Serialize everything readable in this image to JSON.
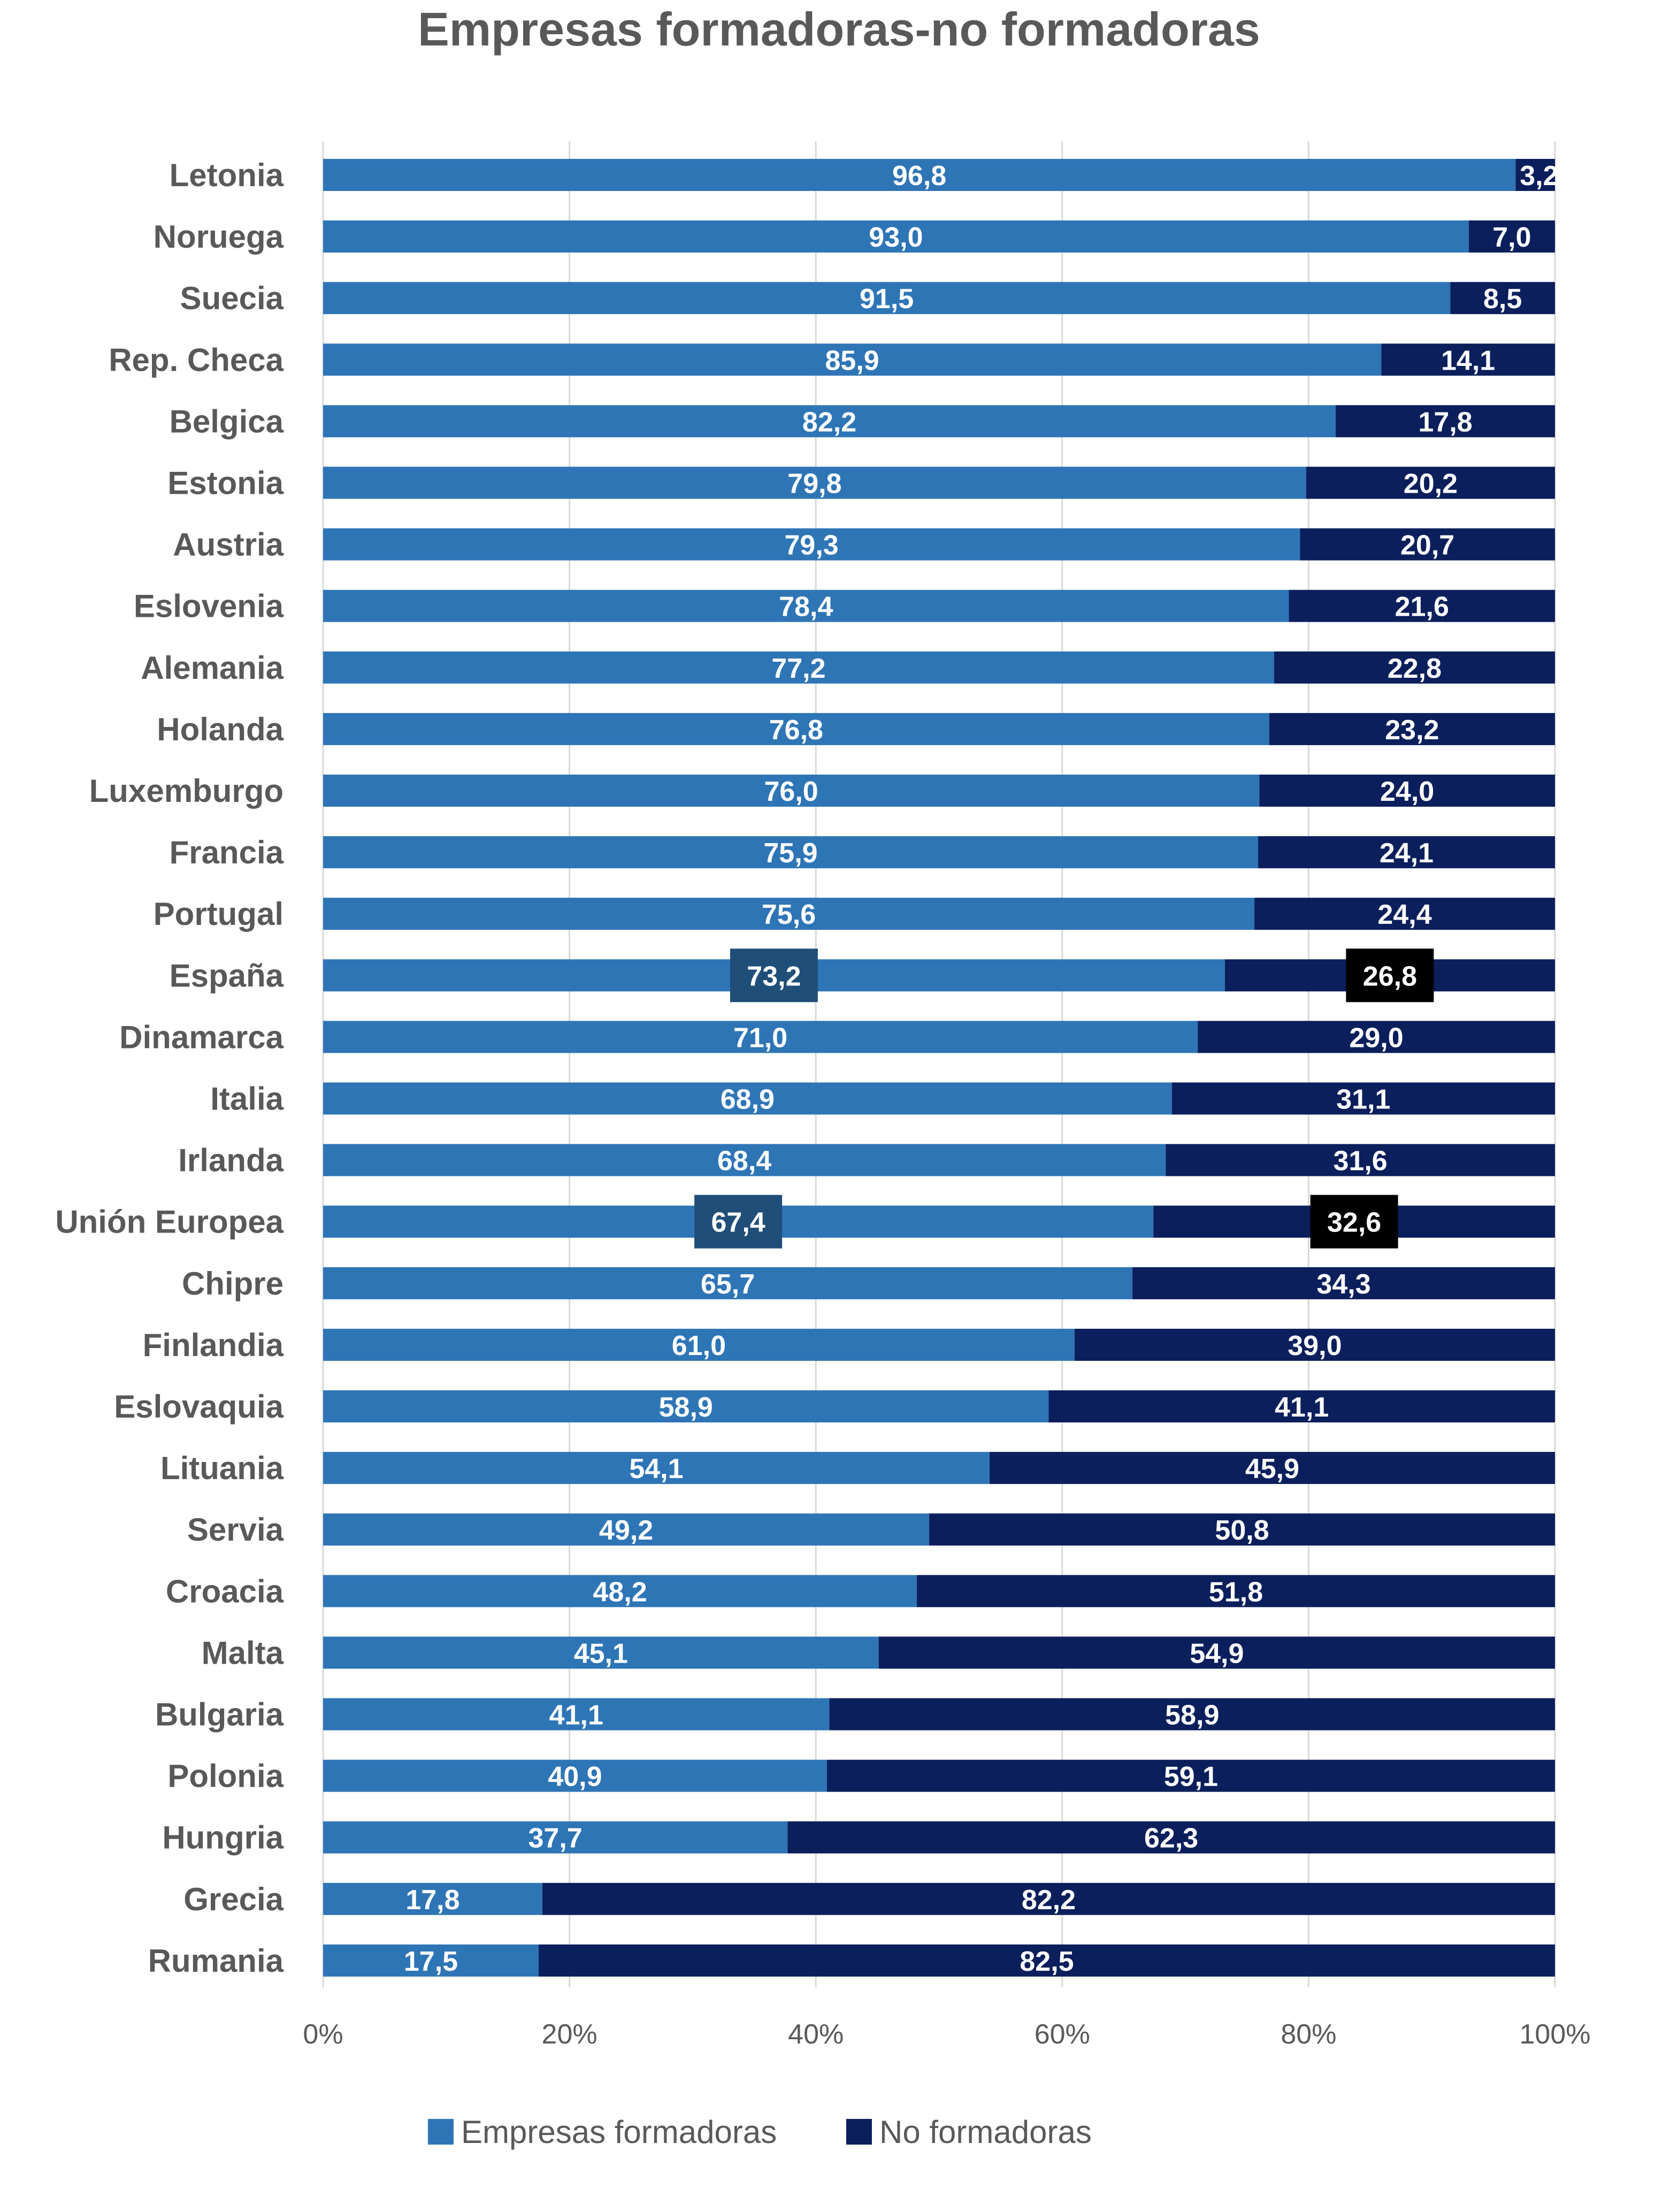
{
  "chart_data": {
    "type": "bar",
    "orientation": "horizontal",
    "stacked": "percent",
    "title": "Empresas formadoras-no formadoras",
    "categories": [
      "Letonia",
      "Noruega",
      "Suecia",
      "Rep. Checa",
      "Belgica",
      "Estonia",
      "Austria",
      "Eslovenia",
      "Alemania",
      "Holanda",
      "Luxemburgo",
      "Francia",
      "Portugal",
      "España",
      "Dinamarca",
      "Italia",
      "Irlanda",
      "Unión Europea",
      "Chipre",
      "Finlandia",
      "Eslovaquia",
      "Lituania",
      "Servia",
      "Croacia",
      "Malta",
      "Bulgaria",
      "Polonia",
      "Hungria",
      "Grecia",
      "Rumania"
    ],
    "series": [
      {
        "name": "Empresas formadoras",
        "color": "#2E75B6",
        "values": [
          96.8,
          93.0,
          91.5,
          85.9,
          82.2,
          79.8,
          79.3,
          78.4,
          77.2,
          76.8,
          76.0,
          75.9,
          75.6,
          73.2,
          71.0,
          68.9,
          68.4,
          67.4,
          65.7,
          61.0,
          58.9,
          54.1,
          49.2,
          48.2,
          45.1,
          41.1,
          40.9,
          37.7,
          17.8,
          17.5
        ],
        "labels": [
          "96,8",
          "93,0",
          "91,5",
          "85,9",
          "82,2",
          "79,8",
          "79,3",
          "78,4",
          "77,2",
          "76,8",
          "76,0",
          "75,9",
          "75,6",
          "73,2",
          "71,0",
          "68,9",
          "68,4",
          "67,4",
          "65,7",
          "61,0",
          "58,9",
          "54,1",
          "49,2",
          "48,2",
          "45,1",
          "41,1",
          "40,9",
          "37,7",
          "17,8",
          "17,5"
        ]
      },
      {
        "name": "No formadoras",
        "color": "#0B1F5C",
        "values": [
          3.2,
          7.0,
          8.5,
          14.1,
          17.8,
          20.2,
          20.7,
          21.6,
          22.8,
          23.2,
          24.0,
          24.1,
          24.4,
          26.8,
          29.0,
          31.1,
          31.6,
          32.6,
          34.3,
          39.0,
          41.1,
          45.9,
          50.8,
          51.8,
          54.9,
          58.9,
          59.1,
          62.3,
          82.2,
          82.5
        ],
        "labels": [
          "3,2",
          "7,0",
          "8,5",
          "14,1",
          "17,8",
          "20,2",
          "20,7",
          "21,6",
          "22,8",
          "23,2",
          "24,0",
          "24,1",
          "24,4",
          "26,8",
          "29,0",
          "31,1",
          "31,6",
          "32,6",
          "34,3",
          "39,0",
          "41,1",
          "45,9",
          "50,8",
          "51,8",
          "54,9",
          "58,9",
          "59,1",
          "62,3",
          "82,2",
          "82,5"
        ]
      }
    ],
    "highlighted_categories": [
      "España",
      "Unión Europea"
    ],
    "highlight_colors": {
      "formadoras": "#1F4E79",
      "no_formadoras": "#000000"
    },
    "xlim": [
      0,
      100
    ],
    "x_ticks": [
      "0%",
      "20%",
      "40%",
      "60%",
      "80%",
      "100%"
    ],
    "grid": "vertical gridlines",
    "legend": "bottom"
  }
}
